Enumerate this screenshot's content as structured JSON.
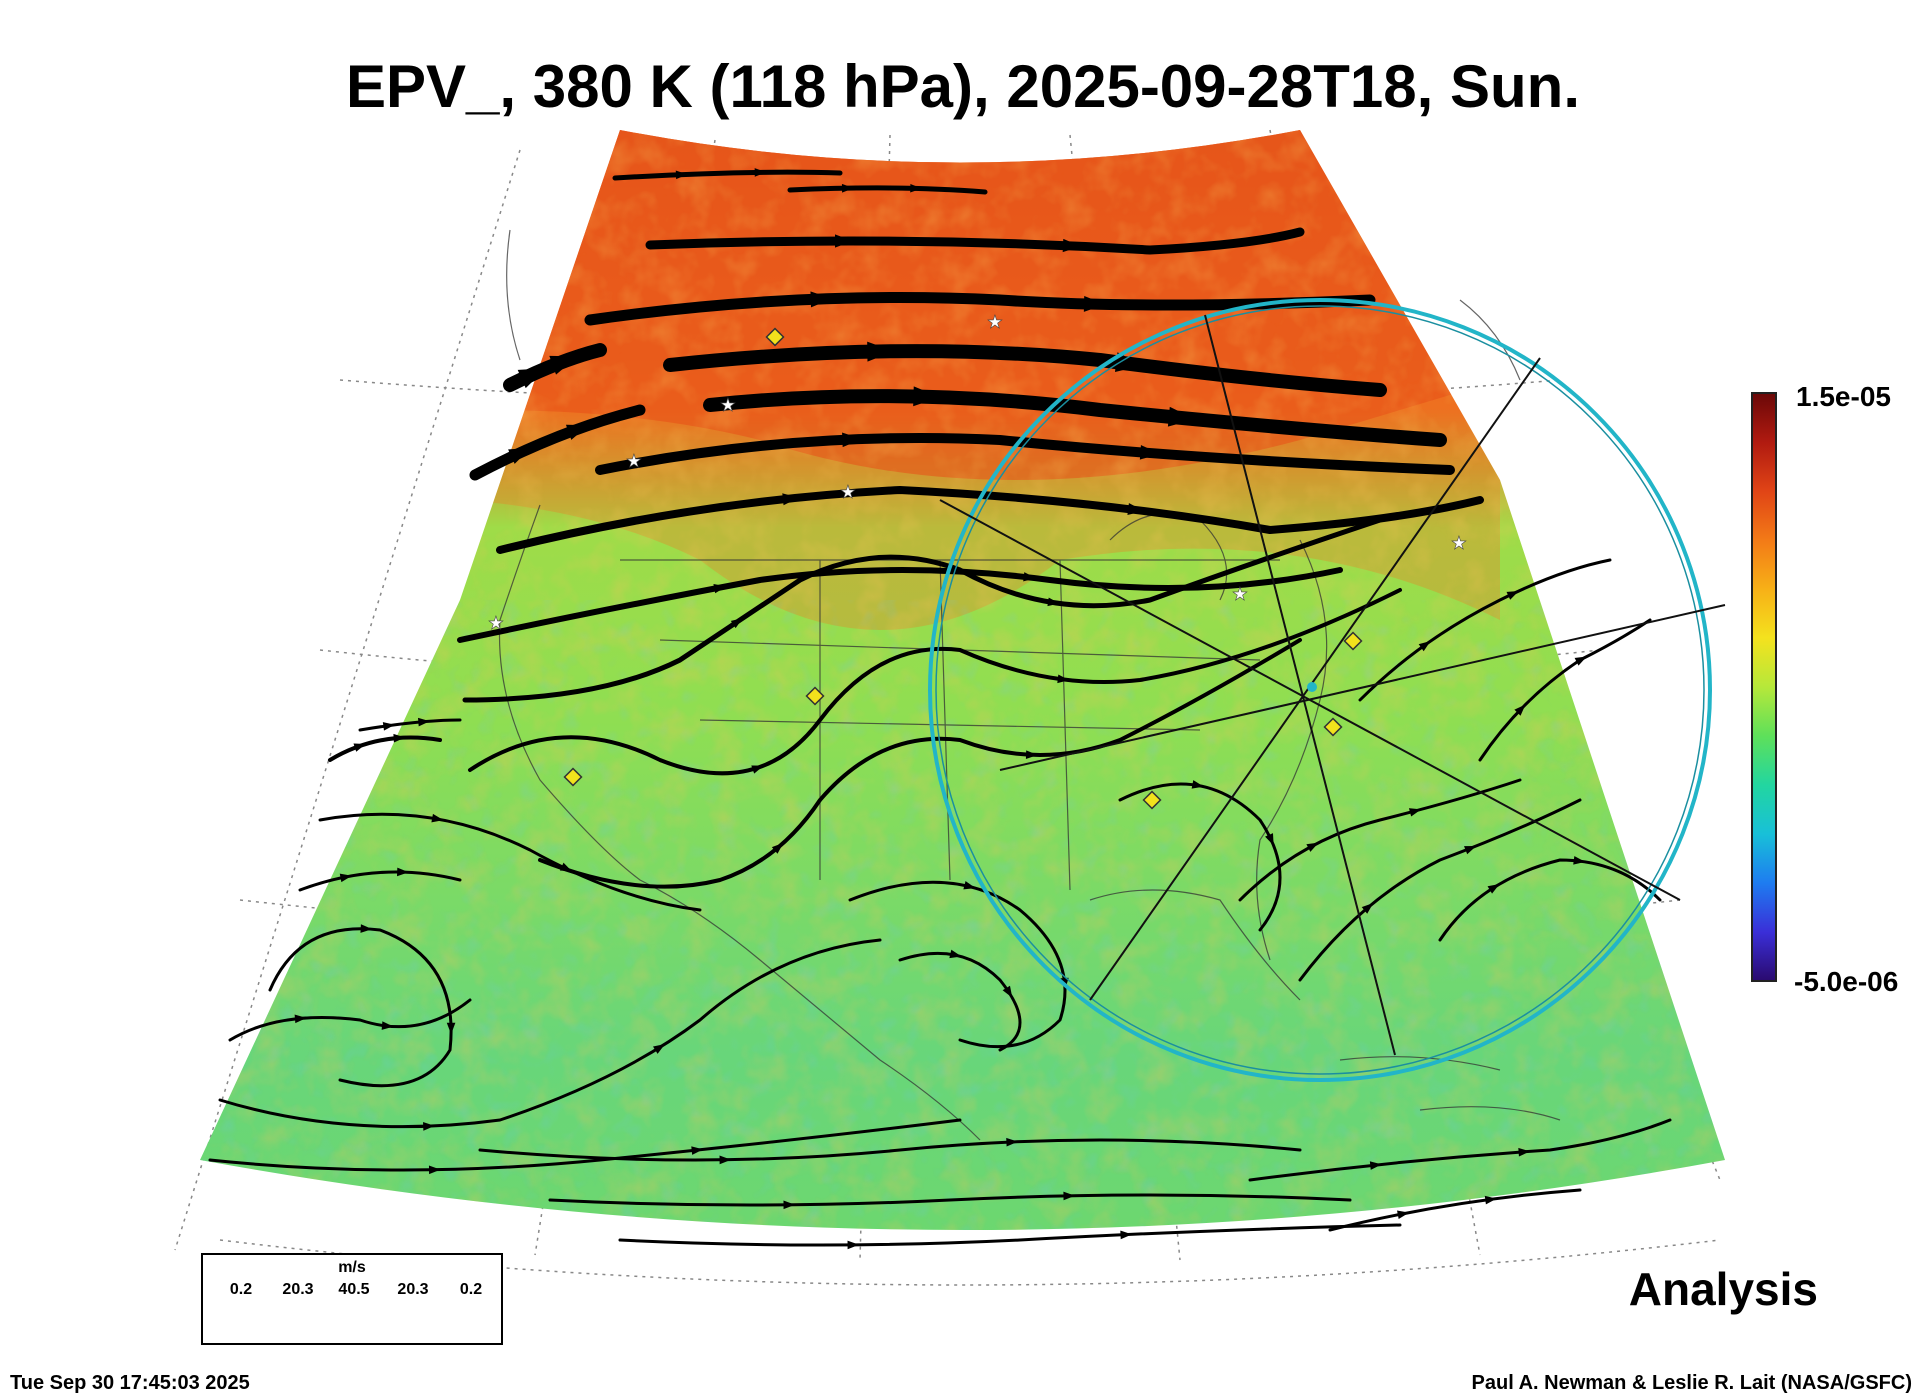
{
  "title": "EPV_, 380 K (118 hPa), 2025-09-28T18, Sun.",
  "label_analysis": "Analysis",
  "footer": {
    "timestamp": "Tue Sep 30 17:45:03 2025",
    "credit": "Paul A. Newman & Leslie R. Lait (NASA/GSFC)"
  },
  "colorbar": {
    "max_label": "1.5e-05",
    "min_label": "-5.0e-06",
    "colors": [
      "#2a0a6e",
      "#3a2fd8",
      "#1e7cf0",
      "#18c0d8",
      "#22d6a0",
      "#5ee05a",
      "#b6e83a",
      "#f4e21e",
      "#f7b017",
      "#f37a17",
      "#e04416",
      "#b01a10",
      "#6a0808"
    ]
  },
  "legend": {
    "unit": "m/s",
    "values": [
      "0.2",
      "20.3",
      "40.5",
      "20.3",
      "0.2"
    ]
  },
  "map": {
    "background_colors": {
      "polar": "#e8561c",
      "mid": "#f19a2a",
      "tropic": "#7fdc56",
      "low": "#54d28a"
    },
    "circle_color": "#22b5c8",
    "marker_colors": {
      "diamond": "#f2e21c",
      "star": "#ffffff"
    }
  }
}
